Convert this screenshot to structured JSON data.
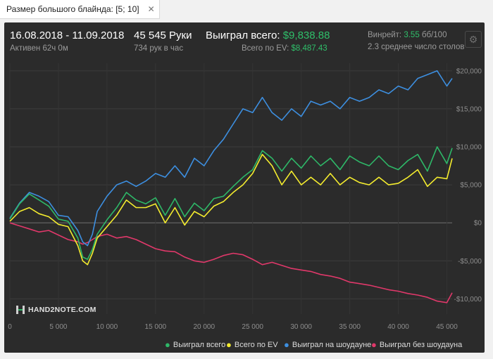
{
  "tab": {
    "title": "Размер большого блайнда: [5; 10]",
    "close_glyph": "✕"
  },
  "header": {
    "date_range": "16.08.2018 - 11.09.2018",
    "active": "Активен 62ч 0м",
    "hands": "45 545 Руки",
    "hands_per_hour": "734 рук в час",
    "won_total_label": "Выиграл всего:",
    "won_total_value": "$9,838.88",
    "ev_label": "Всего по EV:",
    "ev_value": "$8,487.43",
    "winrate_label": "Винрейт:",
    "winrate_value": "3.55",
    "winrate_unit": "бб/100",
    "tables": "2.3 среднее число столов",
    "settings_icon": "gear-icon"
  },
  "logo": {
    "text": "HAND2NOTE.COM"
  },
  "legend": [
    {
      "label": "Выиграл всего",
      "color": "#2eb868"
    },
    {
      "label": "Всего по EV",
      "color": "#f4ec2e"
    },
    {
      "label": "Выиграл на шоудауне",
      "color": "#3d8fe0"
    },
    {
      "label": "Выиграл без шоудауна",
      "color": "#e0386a"
    }
  ],
  "chart_data": {
    "type": "line",
    "xlabel": "",
    "ylabel": "",
    "xlim": [
      0,
      45545
    ],
    "ylim": [
      -12000,
      21000
    ],
    "grid": true,
    "legend_position": "bottom-right",
    "x_ticks": [
      0,
      5000,
      10000,
      15000,
      20000,
      25000,
      30000,
      35000,
      40000,
      45000
    ],
    "x_tick_labels": [
      "0",
      "5 000",
      "10 000",
      "15 000",
      "20 000",
      "25 000",
      "30 000",
      "35 000",
      "40 000",
      "45 000"
    ],
    "y_ticks": [
      -10000,
      -5000,
      0,
      5000,
      10000,
      15000,
      20000
    ],
    "y_tick_labels": [
      "-$10,000",
      "-$5,000",
      "$0",
      "$5,000",
      "$10,000",
      "$15,000",
      "$20,000"
    ],
    "x": [
      0,
      1000,
      2000,
      3000,
      4000,
      5000,
      6000,
      7000,
      7500,
      8000,
      8500,
      9000,
      10000,
      11000,
      12000,
      13000,
      14000,
      15000,
      16000,
      17000,
      18000,
      19000,
      20000,
      21000,
      22000,
      23000,
      24000,
      25000,
      26000,
      27000,
      28000,
      29000,
      30000,
      31000,
      32000,
      33000,
      34000,
      35000,
      36000,
      37000,
      38000,
      39000,
      40000,
      41000,
      42000,
      43000,
      44000,
      45000,
      45545
    ],
    "series": [
      {
        "name": "Выиграл всего",
        "color": "#2eb868",
        "values": [
          500,
          2500,
          3800,
          3000,
          2200,
          500,
          200,
          -2000,
          -4500,
          -4800,
          -3500,
          -1500,
          400,
          2000,
          4000,
          3000,
          2500,
          3300,
          1000,
          3200,
          800,
          2600,
          1600,
          3200,
          3500,
          4800,
          6000,
          7000,
          9500,
          8500,
          6800,
          8500,
          7200,
          8800,
          7500,
          8500,
          7000,
          8800,
          8000,
          7500,
          8800,
          7500,
          7000,
          8200,
          9000,
          6800,
          10000,
          7800,
          9838.88
        ]
      },
      {
        "name": "Всего по EV",
        "color": "#f4ec2e",
        "values": [
          200,
          1500,
          2000,
          1200,
          800,
          -200,
          -500,
          -3000,
          -5000,
          -5500,
          -4000,
          -2000,
          -500,
          1000,
          3000,
          2000,
          2000,
          2500,
          0,
          2000,
          -300,
          1500,
          800,
          2200,
          2800,
          4000,
          5000,
          6500,
          9000,
          7500,
          5000,
          6800,
          5000,
          6000,
          5000,
          6500,
          5000,
          6000,
          5300,
          5000,
          6000,
          5000,
          5200,
          6000,
          7000,
          4800,
          6000,
          5800,
          8487.43
        ]
      },
      {
        "name": "Выиграл на шоудауне",
        "color": "#3d8fe0",
        "values": [
          600,
          2600,
          4000,
          3500,
          2800,
          1000,
          800,
          -1000,
          -2500,
          -3000,
          -1500,
          1500,
          3500,
          5000,
          5500,
          4800,
          5500,
          6500,
          6000,
          7500,
          6000,
          8500,
          7500,
          9500,
          11000,
          13000,
          15000,
          14500,
          16500,
          14500,
          13500,
          15000,
          14000,
          16000,
          15500,
          16000,
          15000,
          16500,
          16000,
          16500,
          17500,
          17000,
          18000,
          17500,
          19000,
          19500,
          20000,
          18000,
          19000
        ]
      },
      {
        "name": "Выиграл без шоудауна",
        "color": "#e0386a",
        "values": [
          0,
          -400,
          -800,
          -1200,
          -1000,
          -1600,
          -2200,
          -2500,
          -2800,
          -2600,
          -2200,
          -1800,
          -1500,
          -2000,
          -1800,
          -2200,
          -2800,
          -3400,
          -3700,
          -3800,
          -4500,
          -5000,
          -5200,
          -4800,
          -4300,
          -4000,
          -4200,
          -4800,
          -5500,
          -5200,
          -5600,
          -6000,
          -6200,
          -6400,
          -6800,
          -7000,
          -7300,
          -7800,
          -8000,
          -8200,
          -8500,
          -8800,
          -9000,
          -9300,
          -9500,
          -9800,
          -10300,
          -10500,
          -9200
        ]
      }
    ]
  }
}
